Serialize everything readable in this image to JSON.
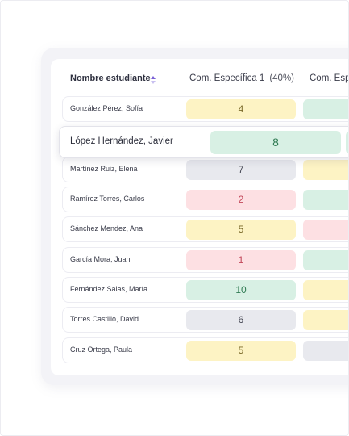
{
  "table": {
    "name_header": "Nombre estudiante",
    "columns": [
      {
        "label": "Com. Específica 1",
        "pct": "(40%)"
      },
      {
        "label": "Com. Espe",
        "pct": ""
      }
    ],
    "rows": [
      {
        "name": "González Pérez, Sofía",
        "c1": "4",
        "c1_status": "yellow",
        "c2": "",
        "c2_status": "green"
      },
      {
        "name": "López Hernández, Javier",
        "c1": "8",
        "c1_status": "green",
        "c2": "",
        "c2_status": "green"
      },
      {
        "name": "Martínez Ruiz, Elena",
        "c1": "7",
        "c1_status": "gray",
        "c2": "",
        "c2_status": "yellow"
      },
      {
        "name": "Ramírez Torres, Carlos",
        "c1": "2",
        "c1_status": "red",
        "c2": "",
        "c2_status": "green"
      },
      {
        "name": "Sánchez Mendez, Ana",
        "c1": "5",
        "c1_status": "yellow",
        "c2": "",
        "c2_status": "red"
      },
      {
        "name": "García Mora, Juan",
        "c1": "1",
        "c1_status": "red",
        "c2": "",
        "c2_status": "green"
      },
      {
        "name": "Fernández Salas, María",
        "c1": "10",
        "c1_status": "green",
        "c2": "",
        "c2_status": "yellow"
      },
      {
        "name": "Torres Castillo, David",
        "c1": "6",
        "c1_status": "gray",
        "c2": "",
        "c2_status": "yellow"
      },
      {
        "name": "Cruz Ortega, Paula",
        "c1": "5",
        "c1_status": "yellow",
        "c2": "",
        "c2_status": "gray"
      }
    ]
  },
  "colors": {
    "yellow": "#fdf3c4",
    "green": "#d8f0e4",
    "gray": "#e8e9ee",
    "red": "#fde0e3",
    "sort_icon_accent": "#7b61d6"
  },
  "icons": {
    "sort": "sort-updown-icon"
  }
}
